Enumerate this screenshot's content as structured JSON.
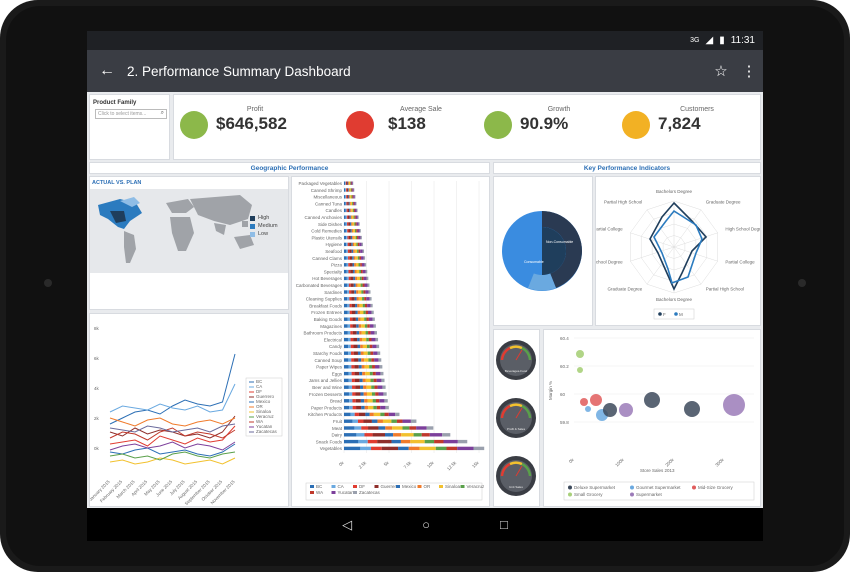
{
  "status": {
    "time": "11:31",
    "network": "3G"
  },
  "appbar": {
    "title": "2. Performance Summary Dashboard"
  },
  "filter": {
    "label": "Product Family",
    "placeholder": "Click to select items..."
  },
  "kpis": [
    {
      "label": "Profit",
      "value": "$646,582",
      "color": "#8cb84a"
    },
    {
      "label": "Average Sale",
      "value": "$138",
      "color": "#e03c31"
    },
    {
      "label": "Growth",
      "value": "90.9%",
      "color": "#8cb84a"
    },
    {
      "label": "Customers",
      "value": "7,824",
      "color": "#f2b124"
    }
  ],
  "sections": {
    "geo": "Geographic Performance",
    "kpi": "Key Performance Indicators",
    "map_title": "ACTUAL VS. PLAN"
  },
  "map_legend": [
    {
      "label": "High",
      "color": "#1f3e5c"
    },
    {
      "label": "Medium",
      "color": "#2b7bbf"
    },
    {
      "label": "Low",
      "color": "#8fbde6"
    }
  ],
  "line_legend": [
    "BC",
    "CA",
    "DF",
    "Guerrero",
    "Mexico",
    "OR",
    "Sinaloa",
    "Veracruz",
    "WA",
    "Yucatan",
    "Zacatecas"
  ],
  "bar_legend": [
    "BC",
    "CA",
    "DF",
    "Guerrero",
    "Mexico",
    "OR",
    "Sinaloa",
    "Veracruz",
    "WA",
    "Yucatan",
    "Zacatecas"
  ],
  "series_colors": [
    "#2c6fb5",
    "#6aa9e0",
    "#e03c31",
    "#8e2e2a",
    "#2c6fb5",
    "#f07b2b",
    "#f2c12e",
    "#5aa04a",
    "#c0392b",
    "#7c3f9b",
    "#6a6a9b"
  ],
  "product_categories": [
    "Packaged Vegetables",
    "Canned Shrimp",
    "Miscellaneous",
    "Canned Tuna",
    "Candles",
    "Canned Anchovies",
    "Side Dishes",
    "Cold Remedies",
    "Plastic Utensils",
    "Hygiene",
    "Seafood",
    "Canned Clams",
    "Pizza",
    "Specialty",
    "Hot Beverages",
    "Carbonated Beverages",
    "Sardines",
    "Cleaning Supplies",
    "Breakfast Foods",
    "Frozen Entrees",
    "Baking Goods",
    "Magazines",
    "Bathroom Products",
    "Electrical",
    "Candy",
    "Starchy Foods",
    "Canned Soup",
    "Paper Wipes",
    "Eggs",
    "Jams and Jellies",
    "Beer and Wine",
    "Frozen Desserts",
    "Bread",
    "Paper Products",
    "Kitchen Products",
    "Fruit",
    "Meat",
    "Dairy",
    "Snack Foods",
    "Vegetables"
  ],
  "bar_axis": [
    "0k",
    "2.5k",
    "5k",
    "7.5k",
    "10k",
    "12.5k",
    "15k"
  ],
  "line_yaxis": [
    "8k",
    "6k",
    "4k",
    "2k",
    "0k"
  ],
  "line_xaxis": [
    "January 2015",
    "February 2015",
    "March 2015",
    "April 2015",
    "May 2015",
    "June 2015",
    "July 2015",
    "August 2015",
    "September 2015",
    "October 2015",
    "November 2015"
  ],
  "radar_labels": [
    "Bachelors Degree",
    "Graduate Degree",
    "High School Degree",
    "Partial College",
    "Partial High School",
    "Bachelors Degree",
    "Graduate Degree",
    "High School Degree",
    "Partial College",
    "Partial High School"
  ],
  "radar_legend": [
    "F",
    "M"
  ],
  "donut_labels": {
    "inner": "Non-Consumable",
    "outer": "Consumable"
  },
  "gauge_labels": [
    "Beverages-Food",
    "Profit & Sales",
    "Unit Sales"
  ],
  "bubble": {
    "ylabel": "Margin %",
    "xlabel": "Store Sales 2013",
    "yaxis": [
      "60.4",
      "60.2",
      "60",
      "59.8"
    ],
    "xaxis": [
      "0k",
      "100k",
      "200k",
      "300k"
    ],
    "legend": [
      {
        "label": "Deluxe Supermarket",
        "color": "#3d4a5c"
      },
      {
        "label": "Gourmet Supermarket",
        "color": "#6aa9e0"
      },
      {
        "label": "Mid-Size Grocery",
        "color": "#e05c5c"
      },
      {
        "label": "Small Grocery",
        "color": "#a8d07a"
      },
      {
        "label": "Supermarket",
        "color": "#9b7bb8"
      }
    ]
  },
  "nav": {
    "back": "◁",
    "home": "○",
    "recent": "□"
  }
}
